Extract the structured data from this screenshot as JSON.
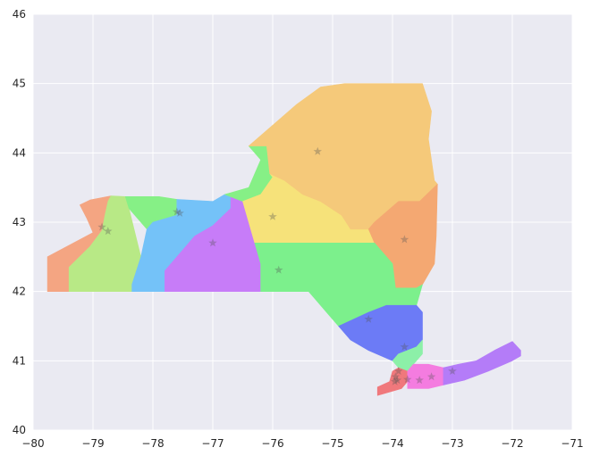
{
  "chart_data": {
    "type": "scatter",
    "title": "",
    "xlabel": "",
    "ylabel": "",
    "xlim": [
      -80,
      -71
    ],
    "ylim": [
      40,
      46
    ],
    "xticks": [
      -80,
      -79,
      -78,
      -77,
      -76,
      -75,
      -74,
      -73,
      -72,
      -71
    ],
    "yticks": [
      40,
      41,
      42,
      43,
      44,
      45,
      46
    ],
    "grid": true,
    "style": {
      "background": "#EAEAF2",
      "grid_color": "#ffffff",
      "marker": "star",
      "marker_color": "#555555",
      "marker_opacity": 0.35
    },
    "regions": [
      {
        "color": "#F4A582",
        "points": [
          [
            -79.76,
            42.0
          ],
          [
            -79.4,
            42.0
          ],
          [
            -79.4,
            42.35
          ],
          [
            -79.05,
            42.65
          ],
          [
            -78.85,
            42.88
          ],
          [
            -78.8,
            43.1
          ],
          [
            -78.75,
            43.3
          ],
          [
            -78.7,
            43.38
          ],
          [
            -79.05,
            43.32
          ],
          [
            -79.22,
            43.25
          ],
          [
            -79.1,
            43.05
          ],
          [
            -79.0,
            42.85
          ],
          [
            -79.76,
            42.5
          ]
        ]
      },
      {
        "color": "#B8E986",
        "points": [
          [
            -79.4,
            42.0
          ],
          [
            -78.35,
            42.0
          ],
          [
            -78.35,
            42.1
          ],
          [
            -78.2,
            42.5
          ],
          [
            -78.4,
            43.2
          ],
          [
            -78.46,
            43.37
          ],
          [
            -78.7,
            43.38
          ],
          [
            -78.75,
            43.3
          ],
          [
            -78.8,
            43.1
          ],
          [
            -78.85,
            42.88
          ],
          [
            -79.05,
            42.65
          ],
          [
            -79.4,
            42.35
          ]
        ]
      },
      {
        "color": "#86F086",
        "points": [
          [
            -78.46,
            43.37
          ],
          [
            -77.9,
            43.37
          ],
          [
            -77.6,
            43.33
          ],
          [
            -77.6,
            43.1
          ],
          [
            -78.0,
            43.0
          ],
          [
            -78.1,
            42.9
          ],
          [
            -78.4,
            43.2
          ]
        ]
      },
      {
        "color": "#74C2F8",
        "points": [
          [
            -78.1,
            42.9
          ],
          [
            -78.0,
            43.0
          ],
          [
            -77.6,
            43.1
          ],
          [
            -77.6,
            43.33
          ],
          [
            -77.0,
            43.3
          ],
          [
            -76.8,
            43.4
          ],
          [
            -76.7,
            43.4
          ],
          [
            -76.7,
            43.2
          ],
          [
            -77.0,
            42.95
          ],
          [
            -77.3,
            42.8
          ],
          [
            -77.5,
            42.6
          ],
          [
            -77.8,
            42.3
          ],
          [
            -77.8,
            42.0
          ],
          [
            -78.35,
            42.0
          ],
          [
            -78.35,
            42.1
          ],
          [
            -78.2,
            42.5
          ]
        ]
      },
      {
        "color": "#C77CF8",
        "points": [
          [
            -77.8,
            42.0
          ],
          [
            -76.2,
            42.0
          ],
          [
            -76.2,
            42.4
          ],
          [
            -76.3,
            42.7
          ],
          [
            -76.4,
            43.0
          ],
          [
            -76.5,
            43.3
          ],
          [
            -76.7,
            43.4
          ],
          [
            -76.7,
            43.2
          ],
          [
            -77.0,
            42.95
          ],
          [
            -77.3,
            42.8
          ],
          [
            -77.5,
            42.6
          ],
          [
            -77.8,
            42.3
          ]
        ]
      },
      {
        "color": "#86F086",
        "points": [
          [
            -76.8,
            43.4
          ],
          [
            -76.4,
            43.5
          ],
          [
            -76.2,
            43.9
          ],
          [
            -76.4,
            44.1
          ],
          [
            -76.1,
            44.1
          ],
          [
            -76.05,
            43.7
          ],
          [
            -76.0,
            43.65
          ],
          [
            -76.2,
            43.4
          ],
          [
            -76.5,
            43.3
          ]
        ]
      },
      {
        "color": "#F6E27A",
        "points": [
          [
            -76.4,
            43.0
          ],
          [
            -76.5,
            43.3
          ],
          [
            -76.2,
            43.4
          ],
          [
            -76.0,
            43.65
          ],
          [
            -76.05,
            43.7
          ],
          [
            -75.8,
            43.6
          ],
          [
            -75.5,
            43.4
          ],
          [
            -75.2,
            43.3
          ],
          [
            -74.85,
            43.1
          ],
          [
            -74.7,
            42.9
          ],
          [
            -74.4,
            42.9
          ],
          [
            -74.3,
            42.7
          ],
          [
            -75.4,
            42.7
          ],
          [
            -75.9,
            42.7
          ],
          [
            -76.3,
            42.7
          ]
        ]
      },
      {
        "color": "#F5C97A",
        "points": [
          [
            -76.1,
            44.1
          ],
          [
            -76.4,
            44.1
          ],
          [
            -76.0,
            44.4
          ],
          [
            -75.6,
            44.7
          ],
          [
            -75.2,
            44.95
          ],
          [
            -74.8,
            45.0
          ],
          [
            -74.7,
            45.0
          ],
          [
            -74.0,
            45.0
          ],
          [
            -73.5,
            45.0
          ],
          [
            -73.35,
            44.6
          ],
          [
            -73.4,
            44.2
          ],
          [
            -73.3,
            43.6
          ],
          [
            -73.25,
            43.55
          ],
          [
            -73.55,
            43.3
          ],
          [
            -73.9,
            43.3
          ],
          [
            -74.3,
            43.0
          ],
          [
            -74.4,
            42.9
          ],
          [
            -74.7,
            42.9
          ],
          [
            -74.85,
            43.1
          ],
          [
            -75.2,
            43.3
          ],
          [
            -75.5,
            43.4
          ],
          [
            -75.8,
            43.6
          ],
          [
            -76.05,
            43.7
          ]
        ]
      },
      {
        "color": "#F4A872",
        "points": [
          [
            -74.4,
            42.9
          ],
          [
            -74.3,
            43.0
          ],
          [
            -73.9,
            43.3
          ],
          [
            -73.55,
            43.3
          ],
          [
            -73.25,
            43.55
          ],
          [
            -73.27,
            42.8
          ],
          [
            -73.3,
            42.4
          ],
          [
            -73.5,
            42.1
          ],
          [
            -73.6,
            42.05
          ],
          [
            -73.95,
            42.05
          ],
          [
            -74.0,
            42.4
          ],
          [
            -74.3,
            42.7
          ]
        ]
      },
      {
        "color": "#7CF08C",
        "points": [
          [
            -76.2,
            42.0
          ],
          [
            -75.4,
            42.0
          ],
          [
            -75.3,
            41.9
          ],
          [
            -75.1,
            41.7
          ],
          [
            -74.9,
            41.5
          ],
          [
            -74.4,
            41.7
          ],
          [
            -74.1,
            41.8
          ],
          [
            -73.6,
            41.8
          ],
          [
            -73.5,
            42.1
          ],
          [
            -73.6,
            42.05
          ],
          [
            -73.95,
            42.05
          ],
          [
            -74.0,
            42.4
          ],
          [
            -74.3,
            42.7
          ],
          [
            -75.4,
            42.7
          ],
          [
            -75.9,
            42.7
          ],
          [
            -76.3,
            42.7
          ],
          [
            -76.2,
            42.4
          ]
        ]
      },
      {
        "color": "#6C7BF6",
        "points": [
          [
            -74.9,
            41.5
          ],
          [
            -74.7,
            41.3
          ],
          [
            -74.4,
            41.15
          ],
          [
            -74.0,
            41.0
          ],
          [
            -73.9,
            41.1
          ],
          [
            -73.6,
            41.2
          ],
          [
            -73.5,
            41.3
          ],
          [
            -73.5,
            41.7
          ],
          [
            -73.6,
            41.8
          ],
          [
            -74.1,
            41.8
          ],
          [
            -74.4,
            41.7
          ]
        ]
      },
      {
        "color": "#8CF0A8",
        "points": [
          [
            -74.0,
            41.0
          ],
          [
            -73.9,
            40.9
          ],
          [
            -73.75,
            40.85
          ],
          [
            -73.65,
            40.95
          ],
          [
            -73.5,
            41.1
          ],
          [
            -73.5,
            41.3
          ],
          [
            -73.6,
            41.2
          ],
          [
            -73.9,
            41.1
          ]
        ]
      },
      {
        "color": "#F0787C",
        "points": [
          [
            -74.25,
            40.5
          ],
          [
            -74.05,
            40.55
          ],
          [
            -73.85,
            40.6
          ],
          [
            -73.75,
            40.7
          ],
          [
            -73.75,
            40.85
          ],
          [
            -73.9,
            40.9
          ],
          [
            -74.0,
            40.85
          ],
          [
            -74.05,
            40.7
          ],
          [
            -74.25,
            40.62
          ]
        ]
      },
      {
        "color": "#F47CE0",
        "points": [
          [
            -73.75,
            40.6
          ],
          [
            -73.4,
            40.6
          ],
          [
            -73.15,
            40.65
          ],
          [
            -73.15,
            40.9
          ],
          [
            -73.4,
            40.95
          ],
          [
            -73.65,
            40.95
          ],
          [
            -73.75,
            40.85
          ],
          [
            -73.75,
            40.7
          ]
        ]
      },
      {
        "color": "#B47CF8",
        "points": [
          [
            -73.15,
            40.65
          ],
          [
            -72.8,
            40.72
          ],
          [
            -72.4,
            40.85
          ],
          [
            -72.0,
            41.0
          ],
          [
            -71.86,
            41.07
          ],
          [
            -71.86,
            41.15
          ],
          [
            -72.0,
            41.28
          ],
          [
            -72.3,
            41.15
          ],
          [
            -72.6,
            41.0
          ],
          [
            -72.9,
            40.95
          ],
          [
            -73.15,
            40.9
          ]
        ]
      }
    ],
    "markers": [
      {
        "x": -78.85,
        "y": 42.93
      },
      {
        "x": -78.75,
        "y": 42.87
      },
      {
        "x": -77.6,
        "y": 43.15
      },
      {
        "x": -77.55,
        "y": 43.13
      },
      {
        "x": -77.0,
        "y": 42.7
      },
      {
        "x": -76.0,
        "y": 43.08
      },
      {
        "x": -75.9,
        "y": 42.31
      },
      {
        "x": -75.25,
        "y": 44.02
      },
      {
        "x": -73.8,
        "y": 42.75
      },
      {
        "x": -74.4,
        "y": 41.6
      },
      {
        "x": -73.8,
        "y": 41.2
      },
      {
        "x": -73.9,
        "y": 40.85
      },
      {
        "x": -73.95,
        "y": 40.77
      },
      {
        "x": -73.92,
        "y": 40.72
      },
      {
        "x": -73.96,
        "y": 40.7
      },
      {
        "x": -73.75,
        "y": 40.73
      },
      {
        "x": -73.55,
        "y": 40.72
      },
      {
        "x": -73.35,
        "y": 40.77
      },
      {
        "x": -73.0,
        "y": 40.85
      }
    ]
  }
}
